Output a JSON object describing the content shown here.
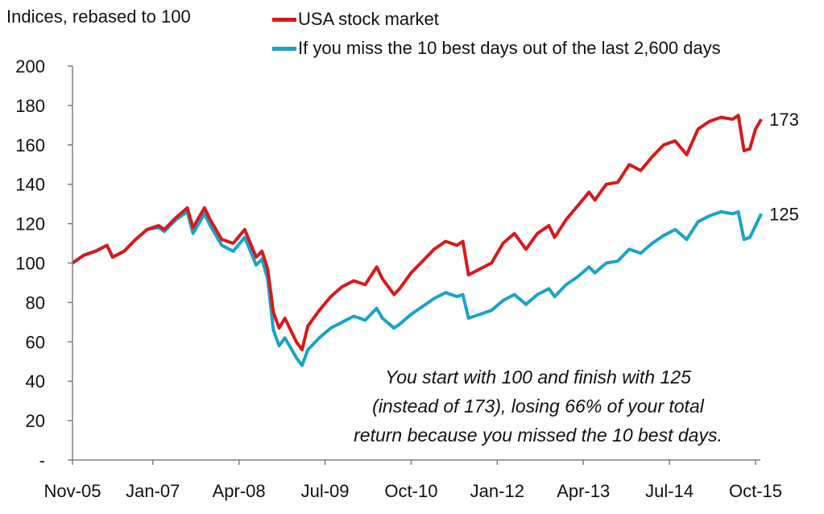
{
  "chart_data": {
    "type": "line",
    "ylabel": "Indices, rebased to 100",
    "xlabel": "",
    "ylim": [
      0,
      200
    ],
    "yticks": [
      0,
      20,
      40,
      60,
      80,
      100,
      120,
      140,
      160,
      180,
      200
    ],
    "ytick_labels": [
      "-",
      "20",
      "40",
      "60",
      "80",
      "100",
      "120",
      "140",
      "160",
      "180",
      "200"
    ],
    "xlim": [
      "2005-11",
      "2015-12"
    ],
    "xticks": [
      "2005-11",
      "2007-01",
      "2008-04",
      "2009-07",
      "2010-10",
      "2012-01",
      "2013-04",
      "2014-07",
      "2015-10"
    ],
    "xtick_labels": [
      "Nov-05",
      "Jan-07",
      "Apr-08",
      "Jul-09",
      "Oct-10",
      "Jan-12",
      "Apr-13",
      "Jul-14",
      "Oct-15"
    ],
    "grid": false,
    "legend_position": "top",
    "series": [
      {
        "name": "USA stock market",
        "color": "#d7191c",
        "end_label": "173",
        "points": [
          [
            "2005-11",
            100
          ],
          [
            "2006-01",
            104
          ],
          [
            "2006-03",
            106
          ],
          [
            "2006-05",
            109
          ],
          [
            "2006-06",
            103
          ],
          [
            "2006-08",
            106
          ],
          [
            "2006-10",
            112
          ],
          [
            "2006-12",
            117
          ],
          [
            "2007-02",
            119
          ],
          [
            "2007-03",
            117
          ],
          [
            "2007-05",
            123
          ],
          [
            "2007-07",
            128
          ],
          [
            "2007-08",
            118
          ],
          [
            "2007-10",
            128
          ],
          [
            "2007-11",
            122
          ],
          [
            "2008-01",
            112
          ],
          [
            "2008-03",
            110
          ],
          [
            "2008-05",
            117
          ],
          [
            "2008-07",
            103
          ],
          [
            "2008-08",
            106
          ],
          [
            "2008-09",
            97
          ],
          [
            "2008-10",
            75
          ],
          [
            "2008-11",
            67
          ],
          [
            "2008-12",
            72
          ],
          [
            "2009-01",
            66
          ],
          [
            "2009-02",
            60
          ],
          [
            "2009-03",
            56
          ],
          [
            "2009-04",
            68
          ],
          [
            "2009-06",
            76
          ],
          [
            "2009-08",
            83
          ],
          [
            "2009-10",
            88
          ],
          [
            "2009-12",
            91
          ],
          [
            "2010-02",
            89
          ],
          [
            "2010-04",
            98
          ],
          [
            "2010-05",
            92
          ],
          [
            "2010-07",
            84
          ],
          [
            "2010-08",
            87
          ],
          [
            "2010-10",
            95
          ],
          [
            "2010-12",
            101
          ],
          [
            "2011-02",
            107
          ],
          [
            "2011-04",
            111
          ],
          [
            "2011-06",
            109
          ],
          [
            "2011-07",
            111
          ],
          [
            "2011-08",
            94
          ],
          [
            "2011-10",
            97
          ],
          [
            "2011-12",
            100
          ],
          [
            "2012-02",
            110
          ],
          [
            "2012-04",
            115
          ],
          [
            "2012-06",
            107
          ],
          [
            "2012-08",
            115
          ],
          [
            "2012-10",
            119
          ],
          [
            "2012-11",
            113
          ],
          [
            "2013-01",
            122
          ],
          [
            "2013-03",
            129
          ],
          [
            "2013-05",
            136
          ],
          [
            "2013-06",
            132
          ],
          [
            "2013-08",
            140
          ],
          [
            "2013-10",
            141
          ],
          [
            "2013-12",
            150
          ],
          [
            "2014-02",
            147
          ],
          [
            "2014-04",
            154
          ],
          [
            "2014-06",
            160
          ],
          [
            "2014-08",
            162
          ],
          [
            "2014-10",
            155
          ],
          [
            "2014-12",
            168
          ],
          [
            "2015-02",
            172
          ],
          [
            "2015-04",
            174
          ],
          [
            "2015-06",
            173
          ],
          [
            "2015-07",
            175
          ],
          [
            "2015-08",
            157
          ],
          [
            "2015-09",
            158
          ],
          [
            "2015-10",
            168
          ],
          [
            "2015-11",
            173
          ]
        ]
      },
      {
        "name": "If you miss the 10 best days out of the last 2,600 days",
        "color": "#1ba3c6",
        "end_label": "125",
        "points": [
          [
            "2005-11",
            100
          ],
          [
            "2006-01",
            104
          ],
          [
            "2006-03",
            106
          ],
          [
            "2006-05",
            109
          ],
          [
            "2006-06",
            103
          ],
          [
            "2006-08",
            106
          ],
          [
            "2006-10",
            112
          ],
          [
            "2006-12",
            117
          ],
          [
            "2007-02",
            118
          ],
          [
            "2007-03",
            116
          ],
          [
            "2007-05",
            122
          ],
          [
            "2007-07",
            126
          ],
          [
            "2007-08",
            115
          ],
          [
            "2007-10",
            125
          ],
          [
            "2007-11",
            119
          ],
          [
            "2008-01",
            109
          ],
          [
            "2008-03",
            106
          ],
          [
            "2008-05",
            113
          ],
          [
            "2008-07",
            99
          ],
          [
            "2008-08",
            102
          ],
          [
            "2008-09",
            92
          ],
          [
            "2008-10",
            66
          ],
          [
            "2008-11",
            58
          ],
          [
            "2008-12",
            62
          ],
          [
            "2009-01",
            57
          ],
          [
            "2009-02",
            52
          ],
          [
            "2009-03",
            48
          ],
          [
            "2009-04",
            56
          ],
          [
            "2009-06",
            62
          ],
          [
            "2009-08",
            67
          ],
          [
            "2009-10",
            70
          ],
          [
            "2009-12",
            73
          ],
          [
            "2010-02",
            71
          ],
          [
            "2010-04",
            77
          ],
          [
            "2010-05",
            72
          ],
          [
            "2010-07",
            67
          ],
          [
            "2010-08",
            69
          ],
          [
            "2010-10",
            74
          ],
          [
            "2010-12",
            78
          ],
          [
            "2011-02",
            82
          ],
          [
            "2011-04",
            85
          ],
          [
            "2011-06",
            83
          ],
          [
            "2011-07",
            84
          ],
          [
            "2011-08",
            72
          ],
          [
            "2011-10",
            74
          ],
          [
            "2011-12",
            76
          ],
          [
            "2012-02",
            81
          ],
          [
            "2012-04",
            84
          ],
          [
            "2012-06",
            79
          ],
          [
            "2012-08",
            84
          ],
          [
            "2012-10",
            87
          ],
          [
            "2012-11",
            83
          ],
          [
            "2013-01",
            89
          ],
          [
            "2013-03",
            93
          ],
          [
            "2013-05",
            98
          ],
          [
            "2013-06",
            95
          ],
          [
            "2013-08",
            100
          ],
          [
            "2013-10",
            101
          ],
          [
            "2013-12",
            107
          ],
          [
            "2014-02",
            105
          ],
          [
            "2014-04",
            110
          ],
          [
            "2014-06",
            114
          ],
          [
            "2014-08",
            117
          ],
          [
            "2014-10",
            112
          ],
          [
            "2014-12",
            121
          ],
          [
            "2015-02",
            124
          ],
          [
            "2015-04",
            126
          ],
          [
            "2015-06",
            125
          ],
          [
            "2015-07",
            126
          ],
          [
            "2015-08",
            112
          ],
          [
            "2015-09",
            113
          ],
          [
            "2015-10",
            119
          ],
          [
            "2015-11",
            125
          ]
        ]
      }
    ],
    "annotation": [
      "You start with 100 and finish with 125",
      "(instead of 173), losing 66% of your total",
      "return because you missed the 10 best days."
    ]
  }
}
